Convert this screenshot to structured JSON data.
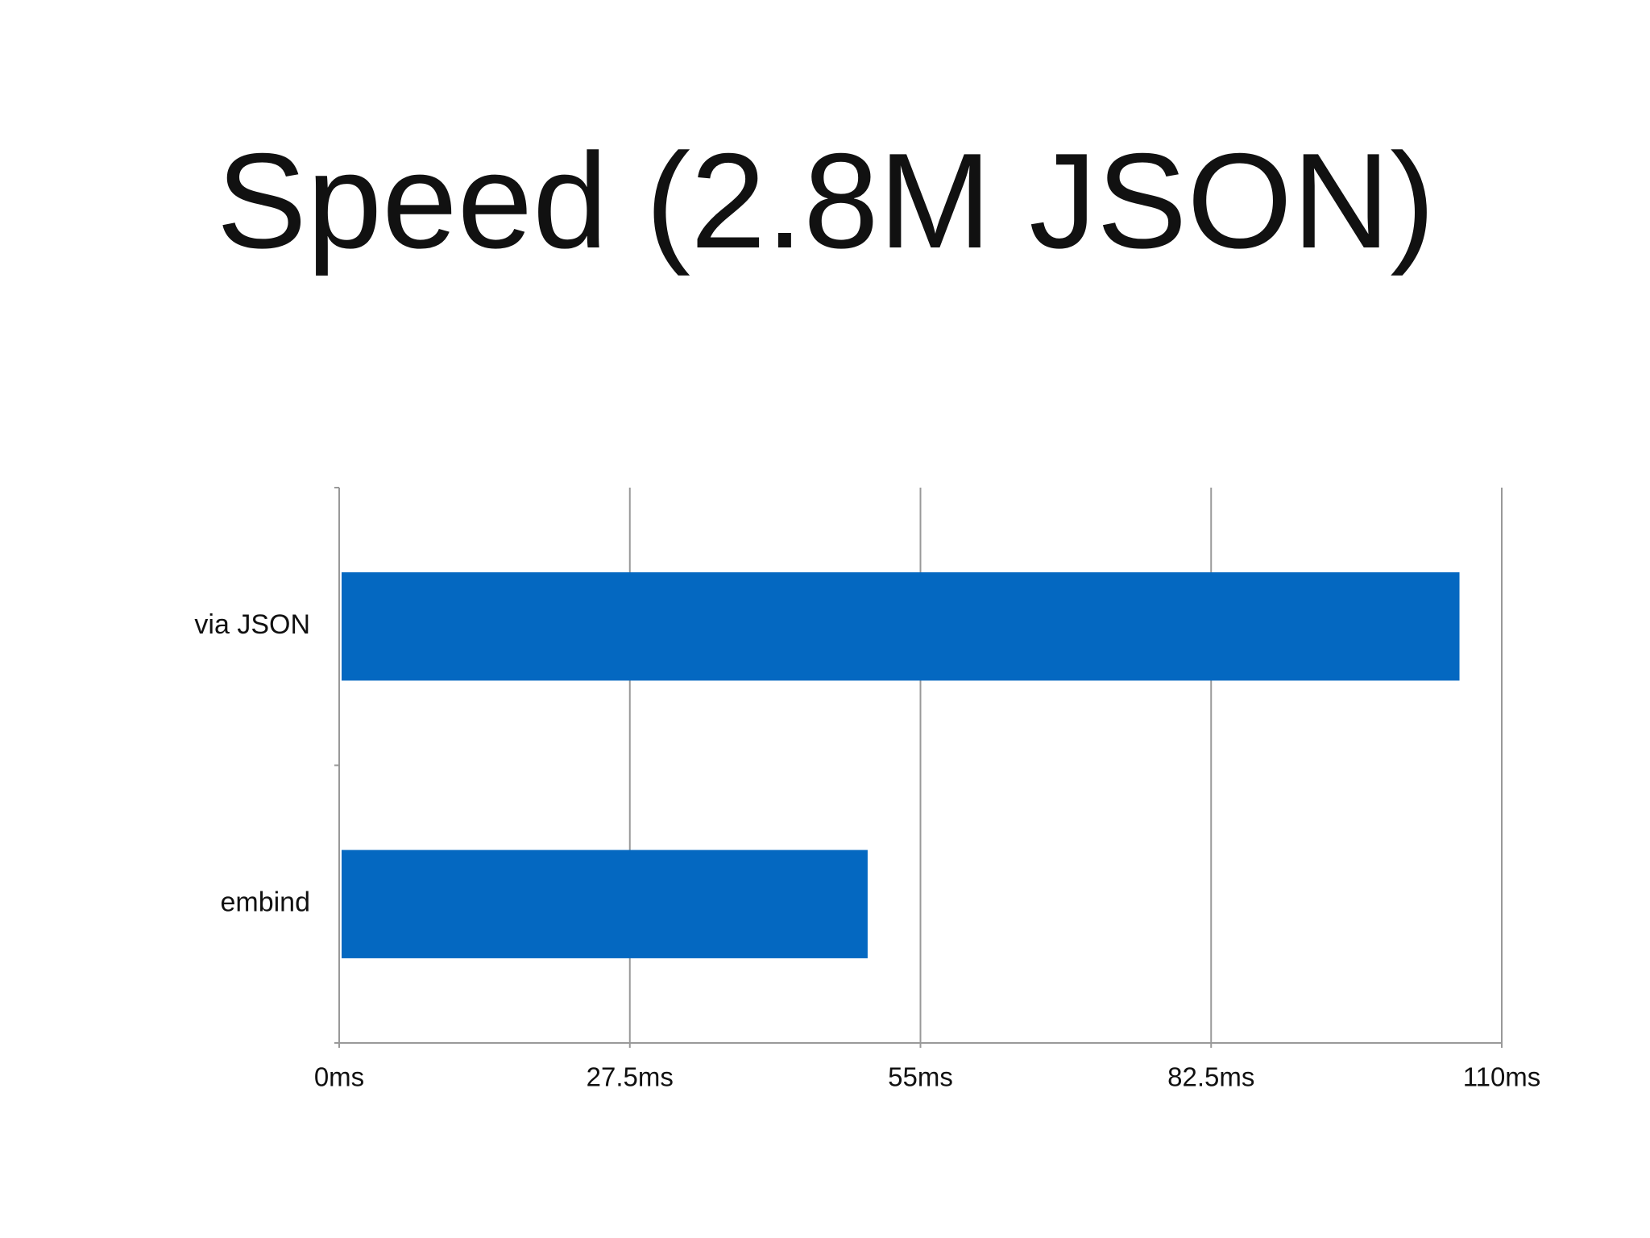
{
  "chart_data": {
    "type": "bar",
    "orientation": "horizontal",
    "title": "Speed (2.8M JSON)",
    "categories": [
      "via JSON",
      "embind"
    ],
    "values": [
      106,
      50
    ],
    "color": "#0468c1",
    "xlim": [
      0,
      110
    ],
    "xticks": [
      {
        "value": 0,
        "label": "0ms"
      },
      {
        "value": 27.5,
        "label": "27.5ms"
      },
      {
        "value": 55,
        "label": "55ms"
      },
      {
        "value": 82.5,
        "label": "82.5ms"
      },
      {
        "value": 110,
        "label": "110ms"
      }
    ],
    "grid": true
  }
}
